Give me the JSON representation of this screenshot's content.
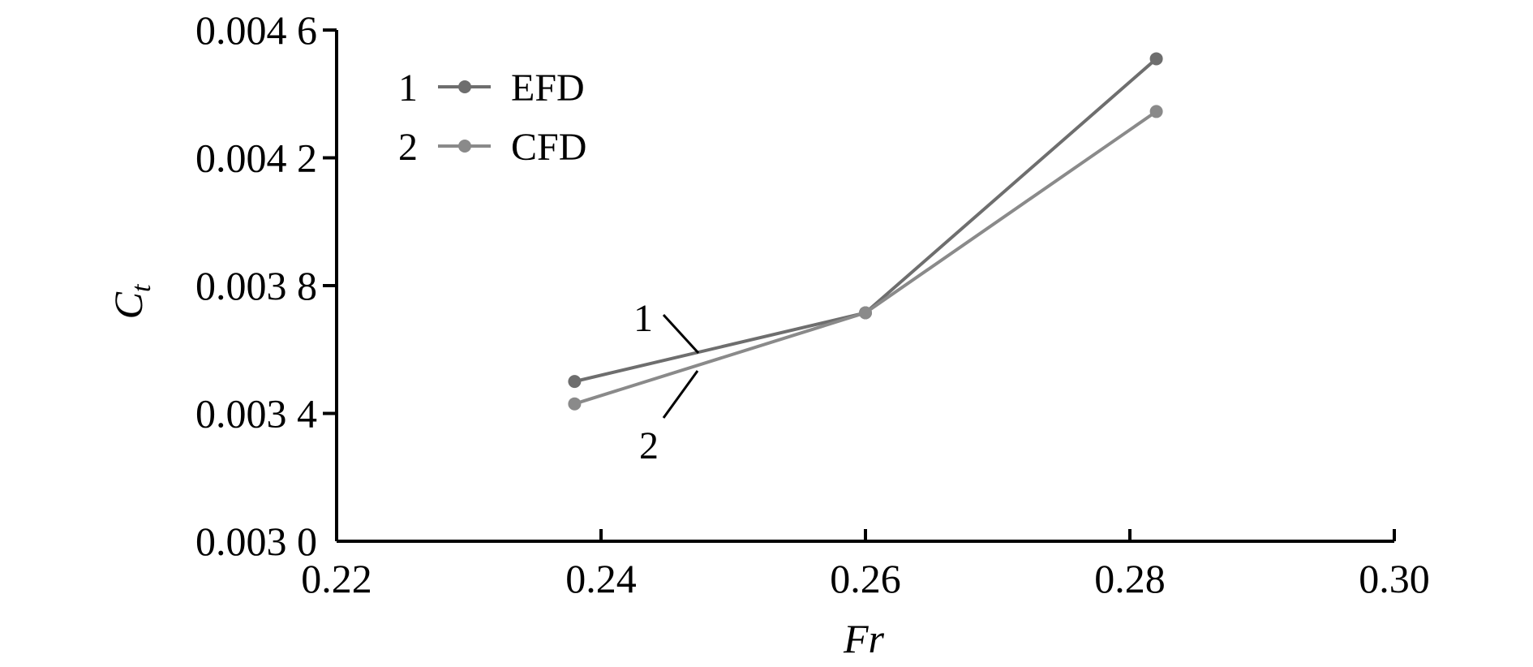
{
  "chart_data": {
    "type": "line",
    "xlabel": "Fr",
    "ylabel": {
      "main": "C",
      "sub": "t"
    },
    "xlim": [
      0.22,
      0.3
    ],
    "ylim": [
      0.003,
      0.0046
    ],
    "xticks": [
      0.22,
      0.24,
      0.26,
      0.28,
      0.3
    ],
    "xtick_labels": [
      "0.22",
      "0.24",
      "0.26",
      "0.28",
      "0.30"
    ],
    "yticks": [
      0.003,
      0.0034,
      0.0038,
      0.0042,
      0.0046
    ],
    "ytick_labels": [
      "0.003 0",
      "0.003 4",
      "0.003 8",
      "0.004 2",
      "0.004 6"
    ],
    "grid": false,
    "legend_position": "top-left",
    "series": [
      {
        "id": "1",
        "name": "EFD",
        "color": "#6e6e6e",
        "x": [
          0.238,
          0.26,
          0.282
        ],
        "y": [
          0.0035,
          0.003715,
          0.00451
        ]
      },
      {
        "id": "2",
        "name": "CFD",
        "color": "#8a8a8a",
        "x": [
          0.238,
          0.26,
          0.282
        ],
        "y": [
          0.00343,
          0.003715,
          0.004345
        ]
      }
    ]
  }
}
